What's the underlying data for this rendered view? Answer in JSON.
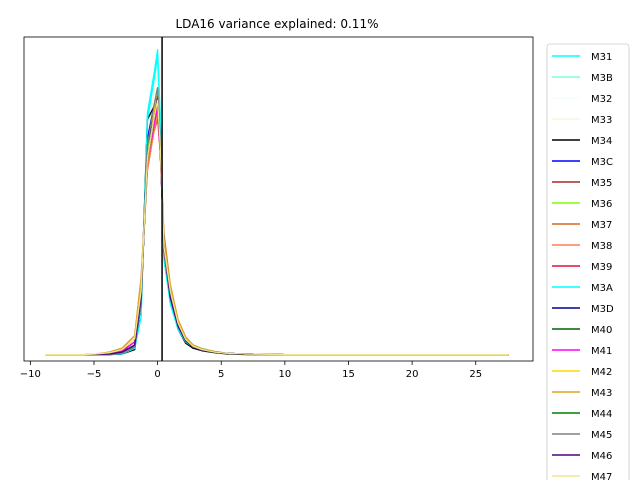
{
  "chart_data": {
    "type": "line",
    "title": "LDA16 variance explained: 0.11%",
    "xlabel": "",
    "ylabel": "",
    "xlim": [
      -10.5,
      29.5
    ],
    "ylim": [
      -0.01,
      0.5
    ],
    "xticks": [
      -10,
      -5,
      0,
      5,
      10,
      15,
      20,
      25
    ],
    "yticks": [],
    "grid": false,
    "legend_position": "right, outside plot",
    "vline": {
      "x": 0.35,
      "color": "#000000"
    },
    "x": [
      -8.8,
      -7.8,
      -6.8,
      -5.8,
      -4.8,
      -3.8,
      -2.8,
      -1.8,
      -1.3,
      -0.8,
      -0.3,
      0.0,
      0.2,
      0.5,
      1.0,
      1.6,
      2.2,
      2.8,
      3.5,
      4.5,
      5.5,
      7.0,
      10.0,
      15.0,
      20.0,
      25.0,
      27.6
    ],
    "series": [
      {
        "name": "M31",
        "color": "#00ffff",
        "values": [
          0.0,
          0.0,
          0.0,
          0.0,
          0.0,
          0.0,
          0.001,
          0.01,
          0.06,
          0.38,
          0.44,
          0.48,
          0.38,
          0.15,
          0.08,
          0.04,
          0.02,
          0.012,
          0.008,
          0.004,
          0.002,
          0.001,
          0.0,
          0.0,
          0.0,
          0.0,
          0.0
        ]
      },
      {
        "name": "M3B",
        "color": "#7fffd4",
        "values": [
          0.0,
          0.0,
          0.0,
          0.0,
          0.0,
          0.0,
          0.001,
          0.01,
          0.07,
          0.36,
          0.43,
          0.47,
          0.37,
          0.16,
          0.09,
          0.045,
          0.025,
          0.015,
          0.01,
          0.005,
          0.002,
          0.001,
          0.0,
          0.0,
          0.0,
          0.0,
          0.0
        ]
      },
      {
        "name": "M32",
        "color": "#f0ffff",
        "values": [
          0.0,
          0.0,
          0.0,
          0.0,
          0.0,
          0.0,
          0.002,
          0.012,
          0.07,
          0.35,
          0.42,
          0.46,
          0.36,
          0.15,
          0.08,
          0.04,
          0.02,
          0.012,
          0.008,
          0.004,
          0.002,
          0.001,
          0.0,
          0.0,
          0.0,
          0.0,
          0.0
        ]
      },
      {
        "name": "M33",
        "color": "#f5f5dc",
        "values": [
          0.0,
          0.0,
          0.0,
          0.0,
          0.0,
          0.0,
          0.002,
          0.012,
          0.08,
          0.34,
          0.41,
          0.45,
          0.36,
          0.16,
          0.09,
          0.045,
          0.022,
          0.013,
          0.008,
          0.004,
          0.002,
          0.001,
          0.0,
          0.0,
          0.0,
          0.0,
          0.0
        ]
      },
      {
        "name": "M34",
        "color": "#000000",
        "values": [
          0.0,
          0.0,
          0.0,
          0.0,
          0.0,
          0.0,
          0.001,
          0.008,
          0.08,
          0.37,
          0.39,
          0.4,
          0.33,
          0.17,
          0.09,
          0.04,
          0.018,
          0.01,
          0.006,
          0.003,
          0.001,
          0.0,
          0.0,
          0.0,
          0.0,
          0.0,
          0.0
        ]
      },
      {
        "name": "M3C",
        "color": "#0000ff",
        "values": [
          0.0,
          0.0,
          0.0,
          0.0,
          0.0,
          0.0,
          0.002,
          0.012,
          0.08,
          0.34,
          0.39,
          0.42,
          0.34,
          0.16,
          0.09,
          0.045,
          0.022,
          0.012,
          0.007,
          0.004,
          0.002,
          0.001,
          0.0,
          0.0,
          0.0,
          0.0,
          0.0
        ]
      },
      {
        "name": "M35",
        "color": "#a52a2a",
        "values": [
          0.0,
          0.0,
          0.0,
          0.0,
          0.0,
          0.002,
          0.005,
          0.02,
          0.11,
          0.3,
          0.36,
          0.38,
          0.32,
          0.18,
          0.1,
          0.05,
          0.025,
          0.014,
          0.008,
          0.004,
          0.002,
          0.001,
          0.0,
          0.0,
          0.0,
          0.0,
          0.0
        ]
      },
      {
        "name": "M36",
        "color": "#7fff00",
        "values": [
          0.0,
          0.0,
          0.0,
          0.0,
          0.0,
          0.001,
          0.003,
          0.015,
          0.09,
          0.32,
          0.38,
          0.41,
          0.33,
          0.17,
          0.09,
          0.045,
          0.022,
          0.012,
          0.007,
          0.004,
          0.002,
          0.001,
          0.0,
          0.0,
          0.0,
          0.0,
          0.0
        ]
      },
      {
        "name": "M37",
        "color": "#d2691e",
        "values": [
          0.0,
          0.0,
          0.0,
          0.0,
          0.001,
          0.004,
          0.01,
          0.03,
          0.12,
          0.29,
          0.35,
          0.37,
          0.32,
          0.19,
          0.11,
          0.055,
          0.028,
          0.015,
          0.009,
          0.005,
          0.002,
          0.001,
          0.0,
          0.0,
          0.0,
          0.0,
          0.0
        ]
      },
      {
        "name": "M38",
        "color": "#ff7f50",
        "values": [
          0.0,
          0.0,
          0.0,
          0.0,
          0.001,
          0.004,
          0.01,
          0.03,
          0.11,
          0.29,
          0.35,
          0.38,
          0.32,
          0.18,
          0.1,
          0.05,
          0.026,
          0.014,
          0.008,
          0.004,
          0.002,
          0.001,
          0.0,
          0.0,
          0.0,
          0.0,
          0.0
        ]
      },
      {
        "name": "M39",
        "color": "#dc143c",
        "values": [
          0.0,
          0.0,
          0.0,
          0.0,
          0.0,
          0.002,
          0.006,
          0.02,
          0.1,
          0.3,
          0.36,
          0.39,
          0.32,
          0.17,
          0.1,
          0.05,
          0.024,
          0.013,
          0.008,
          0.004,
          0.002,
          0.001,
          0.0,
          0.0,
          0.0,
          0.0,
          0.0
        ]
      },
      {
        "name": "M3A",
        "color": "#00ffff",
        "values": [
          0.0,
          0.0,
          0.0,
          0.0,
          0.0,
          0.0,
          0.001,
          0.01,
          0.06,
          0.37,
          0.43,
          0.47,
          0.37,
          0.15,
          0.08,
          0.04,
          0.02,
          0.012,
          0.008,
          0.004,
          0.002,
          0.001,
          0.0,
          0.0,
          0.0,
          0.0,
          0.0
        ]
      },
      {
        "name": "M3D",
        "color": "#00008b",
        "values": [
          0.0,
          0.0,
          0.0,
          0.0,
          0.0,
          0.0,
          0.002,
          0.012,
          0.08,
          0.33,
          0.38,
          0.41,
          0.33,
          0.16,
          0.09,
          0.045,
          0.022,
          0.012,
          0.007,
          0.004,
          0.002,
          0.001,
          0.0,
          0.0,
          0.0,
          0.0,
          0.0
        ]
      },
      {
        "name": "M40",
        "color": "#006400",
        "values": [
          0.0,
          0.0,
          0.0,
          0.0,
          0.0,
          0.001,
          0.004,
          0.015,
          0.09,
          0.31,
          0.37,
          0.4,
          0.33,
          0.17,
          0.09,
          0.045,
          0.022,
          0.012,
          0.007,
          0.004,
          0.002,
          0.001,
          0.0,
          0.0,
          0.0,
          0.0,
          0.0
        ]
      },
      {
        "name": "M41",
        "color": "#ff00ff",
        "values": [
          0.0,
          0.0,
          0.0,
          0.0,
          0.0,
          0.002,
          0.006,
          0.02,
          0.1,
          0.3,
          0.36,
          0.39,
          0.32,
          0.17,
          0.1,
          0.05,
          0.024,
          0.013,
          0.008,
          0.004,
          0.002,
          0.001,
          0.0,
          0.0,
          0.0,
          0.0,
          0.0
        ]
      },
      {
        "name": "M42",
        "color": "#ffd700",
        "values": [
          0.0,
          0.0,
          0.0,
          0.0,
          0.001,
          0.003,
          0.008,
          0.025,
          0.1,
          0.3,
          0.38,
          0.42,
          0.33,
          0.17,
          0.1,
          0.05,
          0.024,
          0.013,
          0.008,
          0.004,
          0.002,
          0.001,
          0.0,
          0.0,
          0.0,
          0.0,
          0.0
        ]
      },
      {
        "name": "M43",
        "color": "#daa520",
        "values": [
          0.0,
          0.0,
          0.0,
          0.0,
          0.001,
          0.004,
          0.01,
          0.03,
          0.12,
          0.3,
          0.37,
          0.4,
          0.33,
          0.18,
          0.11,
          0.055,
          0.027,
          0.015,
          0.009,
          0.005,
          0.002,
          0.001,
          0.0,
          0.0,
          0.0,
          0.0,
          0.0
        ]
      },
      {
        "name": "M44",
        "color": "#008000",
        "values": [
          0.0,
          0.0,
          0.0,
          0.0,
          0.0,
          0.001,
          0.004,
          0.015,
          0.09,
          0.31,
          0.37,
          0.4,
          0.33,
          0.17,
          0.09,
          0.045,
          0.022,
          0.012,
          0.007,
          0.004,
          0.002,
          0.001,
          0.0,
          0.0,
          0.0,
          0.0,
          0.0
        ]
      },
      {
        "name": "M45",
        "color": "#808080",
        "values": [
          0.0,
          0.0,
          0.0,
          0.0,
          0.0,
          0.0,
          0.002,
          0.012,
          0.08,
          0.33,
          0.39,
          0.42,
          0.34,
          0.16,
          0.09,
          0.045,
          0.022,
          0.012,
          0.007,
          0.004,
          0.002,
          0.001,
          0.0,
          0.0,
          0.0,
          0.0,
          0.0
        ]
      },
      {
        "name": "M46",
        "color": "#4b0082",
        "values": [
          0.0,
          0.0,
          0.0,
          0.0,
          0.0,
          0.001,
          0.004,
          0.015,
          0.09,
          0.31,
          0.37,
          0.4,
          0.33,
          0.17,
          0.09,
          0.045,
          0.022,
          0.012,
          0.007,
          0.004,
          0.002,
          0.001,
          0.0,
          0.0,
          0.0,
          0.0,
          0.0
        ]
      },
      {
        "name": "M47",
        "color": "#f0e68c",
        "values": [
          0.0,
          0.0,
          0.0,
          0.0,
          0.001,
          0.003,
          0.008,
          0.025,
          0.1,
          0.31,
          0.37,
          0.4,
          0.33,
          0.17,
          0.1,
          0.05,
          0.024,
          0.013,
          0.008,
          0.004,
          0.002,
          0.001,
          0.0,
          0.0,
          0.0,
          0.0,
          0.0
        ]
      }
    ]
  }
}
